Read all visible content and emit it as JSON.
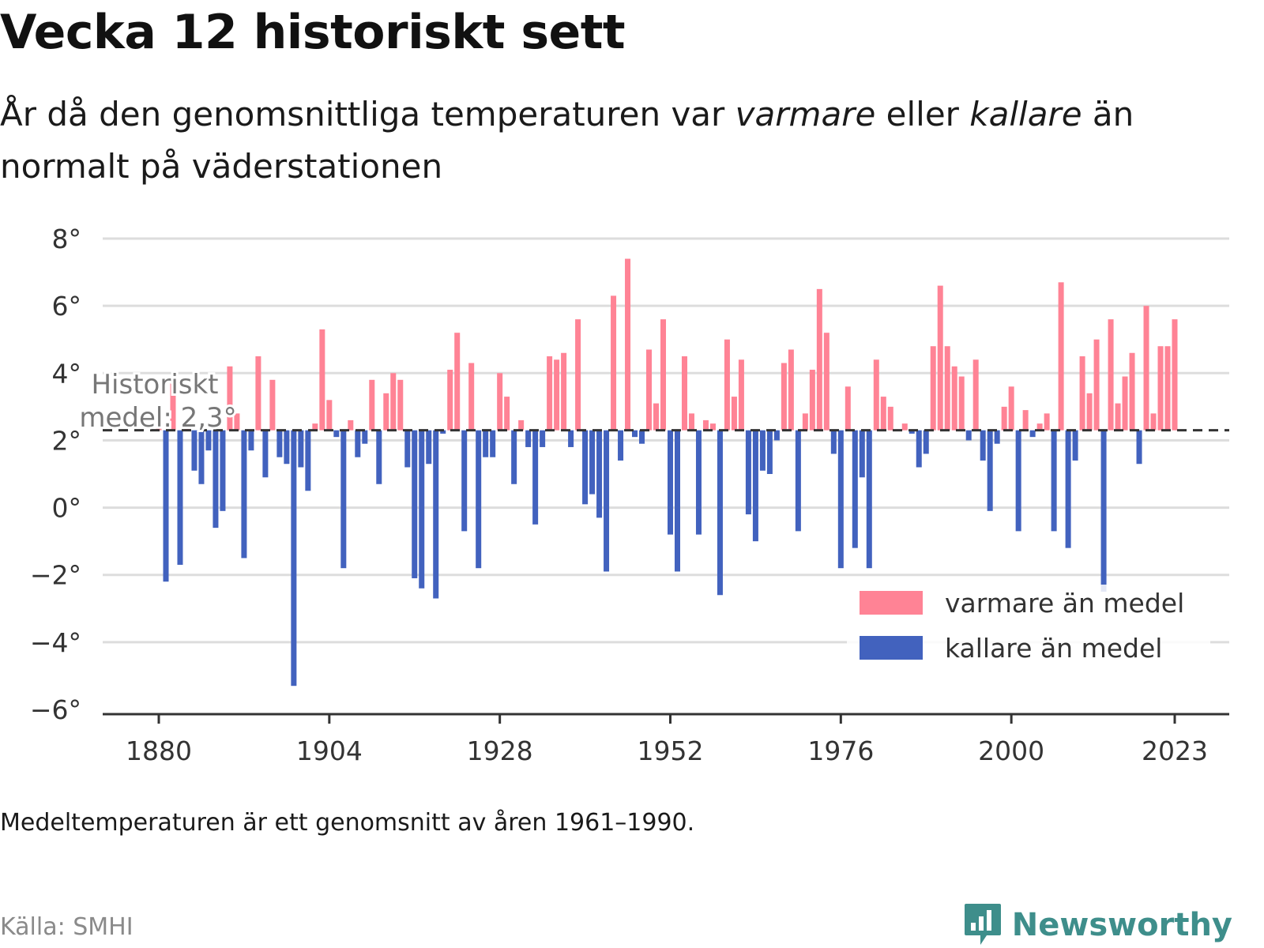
{
  "title": "Vecka 12 historiskt sett",
  "subtitle": {
    "part1": "År då den genomsnittliga temperaturen var ",
    "warmer": "varmare",
    "part2": " eller ",
    "colder": "kallare",
    "part3": " än normalt på väderstationen"
  },
  "footnote": "Medeltemperaturen är ett genomsnitt av åren 1961–1990.",
  "source": "Källa: SMHI",
  "brand": {
    "name": "Newsworthy",
    "icon": "newsworthy-logo-icon",
    "color": "#3e8e8b"
  },
  "colors": {
    "warm": "#ff8395",
    "cold": "#4262be",
    "grid": "#dddddd",
    "axis": "#333333",
    "reference": "#333333"
  },
  "chart_data": {
    "type": "bar",
    "x_start": 1880,
    "x_end": 2023,
    "baseline": 2.3,
    "baseline_label_line1": "Historiskt",
    "baseline_label_line2": "medel: 2,3°",
    "ylim": [
      -6,
      8
    ],
    "yticks": [
      8,
      6,
      4,
      2,
      0,
      -2,
      -4,
      -6
    ],
    "ytick_labels": [
      "8°",
      "6°",
      "4°",
      "2°",
      "0°",
      "−2°",
      "−4°",
      "−6°"
    ],
    "xticks": [
      1880,
      1904,
      1928,
      1952,
      1976,
      2000,
      2023
    ],
    "xtick_labels": [
      "1880",
      "1904",
      "1928",
      "1952",
      "1976",
      "2000",
      "2023"
    ],
    "legend": {
      "position": "bottom-right",
      "warm": "varmare än medel",
      "cold": "kallare än medel"
    },
    "values": [
      2.6,
      -2.2,
      3.8,
      -1.7,
      2.6,
      1.1,
      0.7,
      1.7,
      -0.6,
      -0.1,
      4.2,
      2.8,
      -1.5,
      1.7,
      4.5,
      0.9,
      3.8,
      1.5,
      1.3,
      -5.3,
      1.2,
      0.5,
      2.5,
      5.3,
      3.2,
      2.1,
      -1.8,
      2.6,
      1.5,
      1.9,
      3.8,
      0.7,
      3.4,
      4.0,
      3.8,
      1.2,
      -2.1,
      -2.4,
      1.3,
      -2.7,
      2.2,
      4.1,
      5.2,
      -0.7,
      4.3,
      -1.8,
      1.5,
      1.5,
      4.0,
      3.3,
      0.7,
      2.6,
      1.8,
      -0.5,
      1.8,
      4.5,
      4.4,
      4.6,
      1.8,
      5.6,
      0.1,
      0.4,
      -0.3,
      -1.9,
      6.3,
      1.4,
      7.4,
      2.1,
      1.9,
      4.7,
      3.1,
      5.6,
      -0.8,
      -1.9,
      4.5,
      2.8,
      -0.8,
      2.6,
      2.5,
      -2.6,
      5.0,
      3.3,
      4.4,
      -0.2,
      -1.0,
      1.1,
      1.0,
      2.0,
      4.3,
      4.7,
      -0.7,
      2.8,
      4.1,
      6.5,
      5.2,
      1.6,
      -1.8,
      3.6,
      -1.2,
      0.9,
      -1.8,
      4.4,
      3.3,
      3.0,
      2.3,
      2.5,
      2.2,
      1.2,
      1.6,
      4.8,
      6.6,
      4.8,
      4.2,
      3.9,
      2.0,
      4.4,
      1.4,
      -0.1,
      1.9,
      3.0,
      3.6,
      -0.7,
      2.9,
      2.1,
      2.5,
      2.8,
      -0.7,
      6.7,
      -1.2,
      1.4,
      4.5,
      3.4,
      5.0,
      -2.5,
      5.6,
      3.1,
      3.9,
      4.6,
      1.3,
      6.0,
      2.8,
      4.8,
      4.8,
      5.6
    ]
  }
}
